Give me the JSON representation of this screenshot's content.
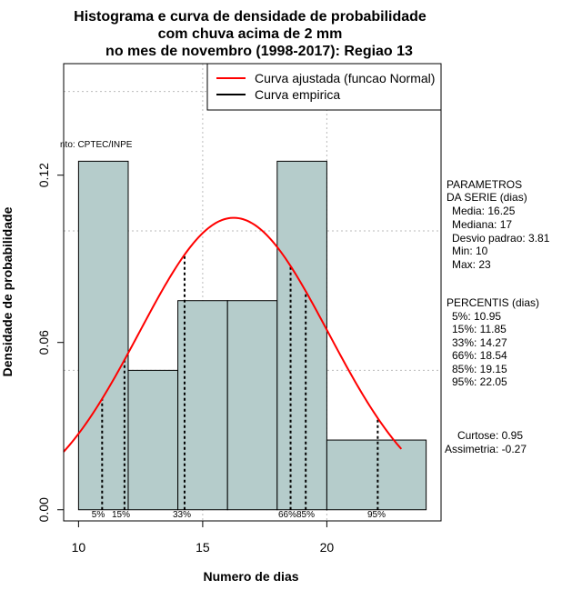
{
  "chart_data": {
    "type": "bar",
    "title_lines": [
      "Histograma e curva de densidade de probabilidade",
      "com chuva acima de 2 mm",
      "no mes de novembro (1998-2017): Regiao 13"
    ],
    "xlabel": "Numero de dias",
    "ylabel": "Densidade de probabilidade",
    "xlim": [
      9.4,
      24.6
    ],
    "ylim": [
      -0.004,
      0.16
    ],
    "x_ticks": [
      10,
      15,
      20
    ],
    "y_ticks": [
      0.0,
      0.06,
      0.12
    ],
    "y_tick_labels": [
      "0.00",
      "0.06",
      "0.12"
    ],
    "bins": [
      {
        "start": 10,
        "end": 12,
        "density": 0.125
      },
      {
        "start": 12,
        "end": 14,
        "density": 0.05
      },
      {
        "start": 14,
        "end": 16,
        "density": 0.075
      },
      {
        "start": 16,
        "end": 18,
        "density": 0.075
      },
      {
        "start": 18,
        "end": 20,
        "density": 0.125
      },
      {
        "start": 20,
        "end": 24,
        "density": 0.025
      }
    ],
    "bar_color": "#b5cccb",
    "curve_color": "#ff0000",
    "normal_fit": {
      "mean": 16.25,
      "sd": 3.81,
      "x_from": 9.4,
      "x_to": 23
    },
    "legend": [
      {
        "label": "Curva ajustada (funcao Normal)",
        "color": "#ff0000"
      },
      {
        "label": "Curva empirica",
        "color": "#000000"
      }
    ],
    "source_note": "nto: CPTEC/INPE",
    "percentile_lines": [
      {
        "label": "5%",
        "x": 10.95
      },
      {
        "label": "15%",
        "x": 11.85
      },
      {
        "label": "33%",
        "x": 14.27
      },
      {
        "label": "66%",
        "x": 18.54
      },
      {
        "label": "85%",
        "x": 19.15
      },
      {
        "label": "95%",
        "x": 22.05
      }
    ],
    "parameters": {
      "heading1": "PARAMETROS",
      "heading2": "DA SERIE (dias)",
      "lines": [
        "Media: 16.25",
        "Mediana: 17",
        "Desvio padrao: 3.81",
        "Min: 10",
        "Max: 23"
      ]
    },
    "percentiles": {
      "heading": "PERCENTIS (dias)",
      "lines": [
        "5%: 10.95",
        "15%: 11.85",
        "33%: 14.27",
        "66%: 18.54",
        "85%: 19.15",
        "95%: 22.05"
      ]
    },
    "shape": {
      "lines": [
        "Curtose: 0.95",
        "Assimetria: -0.27"
      ]
    },
    "grid": true
  }
}
